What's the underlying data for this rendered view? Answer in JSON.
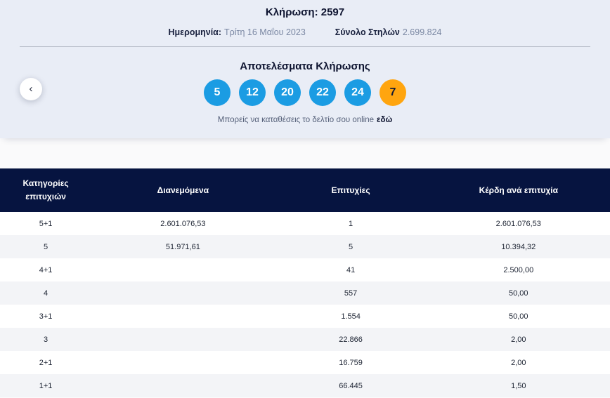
{
  "colors": {
    "band_bg": "#e9edf6",
    "navy_header": "#061440",
    "blue_ball": "#1b9ce3",
    "orange_ball": "#ffa50f",
    "row_alt": "#f3f4f7"
  },
  "header": {
    "draw_label": "Κλήρωση:",
    "draw_number": "2597",
    "date_label": "Ημερομηνία:",
    "date_value": "Τρίτη 16 Μαΐου 2023",
    "total_columns_label": "Σύνολο Στηλών",
    "total_columns_value": "2.699.824"
  },
  "results": {
    "title": "Αποτελέσματα Κλήρωσης",
    "numbers": [
      "5",
      "12",
      "20",
      "22",
      "24"
    ],
    "bonus_number": "7",
    "online_text": "Μπορείς να καταθέσεις το δελτίο σου online",
    "online_link_text": "εδώ",
    "prev_arrow": "‹"
  },
  "table": {
    "headers": [
      "Κατηγορίες επιτυχιών",
      "Διανεμόμενα",
      "Επιτυχίες",
      "Κέρδη ανά επιτυχία"
    ],
    "rows": [
      [
        "5+1",
        "2.601.076,53",
        "1",
        "2.601.076,53"
      ],
      [
        "5",
        "51.971,61",
        "5",
        "10.394,32"
      ],
      [
        "4+1",
        "",
        "41",
        "2.500,00"
      ],
      [
        "4",
        "",
        "557",
        "50,00"
      ],
      [
        "3+1",
        "",
        "1.554",
        "50,00"
      ],
      [
        "3",
        "",
        "22.866",
        "2,00"
      ],
      [
        "2+1",
        "",
        "16.759",
        "2,00"
      ],
      [
        "1+1",
        "",
        "66.445",
        "1,50"
      ]
    ]
  }
}
